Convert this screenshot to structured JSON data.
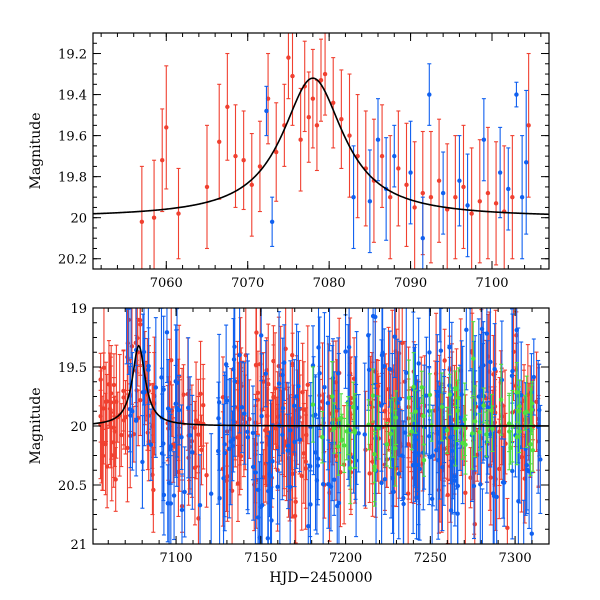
{
  "colors": {
    "series_red": "#f04030",
    "series_blue": "#1060f0",
    "series_green": "#50e040",
    "model": "#000000",
    "frame": "#000000"
  },
  "chart_data": [
    {
      "type": "scatter",
      "panel": "top",
      "title": "",
      "xlabel": "",
      "ylabel": "Magnitude",
      "xlim": [
        7051,
        7107
      ],
      "ylim": [
        20.25,
        19.1
      ],
      "xticks": [
        7060,
        7070,
        7080,
        7090,
        7100
      ],
      "xtick_labels": [
        "7060",
        "7070",
        "7080",
        "7090",
        "7100"
      ],
      "yticks": [
        19.2,
        19.4,
        19.6,
        19.8,
        20.0,
        20.2
      ],
      "ytick_labels": [
        "19.2",
        "19.4",
        "19.6",
        "19.8",
        "20",
        "20.2"
      ],
      "model": {
        "name": "microlensing fit",
        "peak_x": 7078.0,
        "peak_mag": 19.32,
        "baseline_mag": 20.0,
        "tE": 4.6
      },
      "series": [
        {
          "name": "red",
          "x": [
            7057.0,
            7058.5,
            7059.5,
            7060.0,
            7061.5,
            7065.0,
            7066.5,
            7067.5,
            7068.5,
            7069.5,
            7070.5,
            7071.5,
            7072.5,
            7073.5,
            7074.5,
            7075.0,
            7075.5,
            7076.5,
            7077.0,
            7077.5,
            7078.0,
            7078.5,
            7079.0,
            7079.5,
            7080.5,
            7081.5,
            7082.5,
            7083.5,
            7084.5,
            7085.5,
            7086.5,
            7087.5,
            7088.5,
            7089.5,
            7090.5,
            7091.5,
            7092.5,
            7093.5,
            7094.5,
            7095.5,
            7096.5,
            7097.5,
            7098.5,
            7099.5,
            7100.5,
            7101.5,
            7102.5,
            7104.5
          ],
          "y": [
            20.02,
            20.0,
            19.72,
            19.56,
            19.98,
            19.85,
            19.63,
            19.46,
            19.7,
            19.72,
            19.84,
            19.75,
            19.42,
            19.68,
            19.55,
            19.22,
            19.31,
            19.62,
            19.36,
            19.51,
            19.42,
            19.55,
            19.33,
            19.3,
            19.44,
            19.52,
            19.6,
            19.7,
            19.76,
            19.82,
            19.7,
            19.9,
            19.76,
            19.84,
            19.95,
            19.88,
            19.9,
            19.82,
            19.96,
            19.9,
            19.85,
            19.98,
            19.92,
            19.88,
            19.93,
            19.97,
            19.9,
            19.55
          ],
          "err": [
            0.27,
            0.28,
            0.25,
            0.3,
            0.22,
            0.3,
            0.28,
            0.26,
            0.25,
            0.24,
            0.25,
            0.22,
            0.22,
            0.24,
            0.2,
            0.2,
            0.24,
            0.25,
            0.22,
            0.22,
            0.24,
            0.22,
            0.2,
            0.2,
            0.22,
            0.24,
            0.3,
            0.3,
            0.28,
            0.3,
            0.25,
            0.3,
            0.28,
            0.3,
            0.32,
            0.3,
            0.32,
            0.3,
            0.32,
            0.3,
            0.3,
            0.32,
            0.3,
            0.32,
            0.3,
            0.32,
            0.3,
            0.35
          ]
        },
        {
          "name": "blue",
          "x": [
            7072.3,
            7073.0,
            7083.0,
            7085.0,
            7086.0,
            7087.0,
            7088.0,
            7090.0,
            7091.5,
            7092.3,
            7094.0,
            7096.0,
            7097.0,
            7099.0,
            7101.0,
            7102.0,
            7103.0,
            7103.7,
            7104.2
          ],
          "y": [
            19.48,
            20.02,
            19.9,
            19.92,
            19.62,
            19.86,
            19.7,
            19.78,
            20.1,
            19.4,
            19.88,
            19.82,
            19.94,
            19.62,
            19.78,
            19.86,
            19.4,
            19.9,
            19.73
          ],
          "err": [
            0.12,
            0.12,
            0.25,
            0.25,
            0.2,
            0.25,
            0.15,
            0.25,
            0.2,
            0.15,
            0.2,
            0.22,
            0.25,
            0.2,
            0.22,
            0.2,
            0.06,
            0.3,
            0.35
          ]
        }
      ]
    },
    {
      "type": "scatter",
      "panel": "bottom",
      "title": "",
      "xlabel": "HJD−2450000",
      "ylabel": "Magnitude",
      "xlim": [
        7051,
        7320
      ],
      "ylim": [
        21,
        19
      ],
      "xticks": [
        7100,
        7150,
        7200,
        7250,
        7300
      ],
      "xtick_labels": [
        "7100",
        "7150",
        "7200",
        "7250",
        "7300"
      ],
      "yticks": [
        19,
        19.5,
        20,
        20.5,
        21
      ],
      "ytick_labels": [
        "19",
        "19.5",
        "20",
        "20.5",
        "21"
      ],
      "model": {
        "name": "microlensing fit",
        "peak_x": 7078.0,
        "peak_mag": 19.32,
        "baseline_mag": 20.0,
        "tE": 4.6
      },
      "series": [
        {
          "name": "red",
          "x_range": [
            7055,
            7315
          ],
          "y_center": 20.0,
          "y_spread": 0.3,
          "count": 420,
          "err_typical": 0.35,
          "gaps": [
            [
              7088,
              7093
            ],
            [
              7118,
              7127
            ],
            [
              7178,
              7184
            ],
            [
              7206,
              7211
            ],
            [
              7247,
              7252
            ]
          ]
        },
        {
          "name": "blue",
          "x_range": [
            7070,
            7315
          ],
          "y_center": 20.0,
          "y_spread": 0.45,
          "count": 260,
          "err_typical": 0.45
        },
        {
          "name": "green",
          "x_range": [
            7180,
            7315
          ],
          "y_center": 20.0,
          "y_spread": 0.2,
          "count": 70,
          "err_typical": 0.22
        }
      ]
    }
  ]
}
